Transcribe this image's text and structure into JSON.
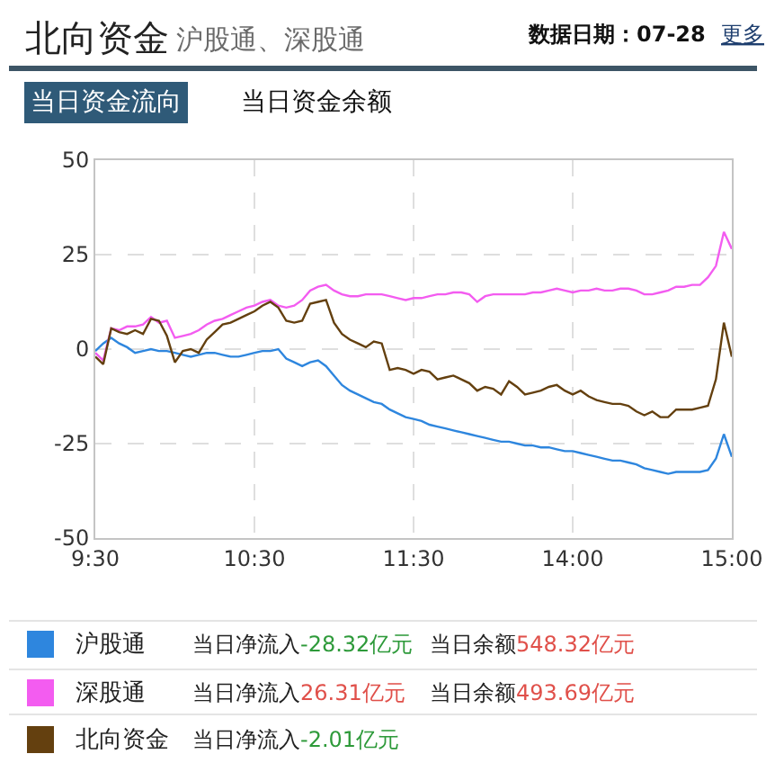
{
  "chart_data": {
    "type": "line",
    "title": "北向资金",
    "subtitle": "沪股通、深股通",
    "annotations": [
      "数据日期：07-28",
      "更多",
      "当日资金流向",
      "当日资金余额",
      "当日净流入-28.32亿元",
      "当日余额548.32亿元",
      "当日净流入26.31亿元",
      "当日余额493.69亿元",
      "当日净流入-2.01亿元"
    ],
    "categories": [
      "9:30",
      null,
      null,
      null,
      null,
      null,
      null,
      null,
      null,
      null,
      null,
      null,
      null,
      null,
      null,
      null,
      null,
      null,
      null,
      null,
      "10:30",
      null,
      null,
      null,
      null,
      null,
      null,
      null,
      null,
      null,
      null,
      null,
      null,
      null,
      null,
      null,
      null,
      null,
      null,
      null,
      "11:30",
      null,
      null,
      null,
      null,
      null,
      null,
      null,
      null,
      null,
      null,
      null,
      null,
      null,
      null,
      null,
      null,
      null,
      null,
      null,
      "14:00",
      null,
      null,
      null,
      null,
      null,
      null,
      null,
      null,
      null,
      null,
      null,
      null,
      null,
      null,
      null,
      null,
      null,
      null,
      null,
      "15:00"
    ],
    "ylim": [
      -50,
      50
    ],
    "yticks": [
      50,
      25,
      0,
      -25,
      -50
    ],
    "grid": true,
    "legend": "bottom",
    "series": [
      {
        "name": "沪股通",
        "color": "#2e86de",
        "values": [
          -0.5,
          1.5,
          3,
          1.5,
          0.5,
          -1,
          -0.5,
          0,
          -0.5,
          -0.5,
          -1,
          -1.5,
          -2,
          -1.5,
          -1,
          -1,
          -1.5,
          -2,
          -2,
          -1.5,
          -1,
          -0.5,
          -0.5,
          0,
          -2.5,
          -3.5,
          -4.5,
          -3.5,
          -3,
          -4.5,
          -7,
          -9.5,
          -11,
          -12,
          -13,
          -14,
          -14.5,
          -16,
          -17,
          -18,
          -18.5,
          -19,
          -20,
          -20.5,
          -21,
          -21.5,
          -22,
          -22.5,
          -23,
          -23.5,
          -24,
          -24.5,
          -24.5,
          -25,
          -25.5,
          -25.5,
          -26,
          -26,
          -26.5,
          -27,
          -27,
          -27.5,
          -28,
          -28.5,
          -29,
          -29.5,
          -29.5,
          -30,
          -30.5,
          -31.5,
          -32,
          -32.5,
          -33,
          -32.5,
          -32.5,
          -32.5,
          -32.5,
          -32,
          -29,
          -22.5,
          -28.5
        ]
      },
      {
        "name": "深股通",
        "color": "#f35cf0",
        "values": [
          -1,
          -3,
          5.5,
          5,
          6,
          6,
          6.5,
          8.5,
          7,
          7.5,
          3,
          3.5,
          4,
          5,
          6.5,
          7.5,
          8,
          9,
          10,
          11,
          11.5,
          12.5,
          13,
          11.5,
          11,
          11.5,
          13,
          15.5,
          16.5,
          17,
          15.5,
          14.5,
          14,
          14,
          14.5,
          14.5,
          14.5,
          14,
          13.5,
          13,
          13.5,
          13.5,
          14,
          14.5,
          14.5,
          15,
          15,
          14.5,
          12.5,
          14,
          14.5,
          14.5,
          14.5,
          14.5,
          14.5,
          15,
          15,
          15.5,
          16,
          15.5,
          15,
          15.5,
          15.5,
          16,
          15.5,
          15.5,
          16,
          16,
          15.5,
          14.5,
          14.5,
          15,
          15.5,
          16.5,
          16.5,
          17,
          17,
          19,
          22,
          31,
          26.5
        ]
      },
      {
        "name": "北向资金",
        "color": "#64400f",
        "values": [
          -2,
          -4,
          5.5,
          4.5,
          4,
          5,
          4,
          8,
          7.5,
          3.5,
          -3.5,
          -0.5,
          0,
          -1,
          2.5,
          4.5,
          6.5,
          7,
          8,
          9,
          10,
          11.5,
          12.5,
          11,
          7.5,
          7,
          7.5,
          12,
          12.5,
          13,
          7,
          4,
          2.5,
          1.5,
          0.5,
          2,
          1.5,
          -5.5,
          -5,
          -5.5,
          -6.5,
          -5.5,
          -6,
          -8,
          -7.5,
          -7,
          -8,
          -9,
          -11,
          -10,
          -10.5,
          -12,
          -8.5,
          -10,
          -12,
          -11.5,
          -11,
          -10,
          -9.5,
          -11,
          -12,
          -11,
          -12.5,
          -13.5,
          -14,
          -14.5,
          -14.5,
          -15,
          -16.5,
          -17.5,
          -16.5,
          -18,
          -18,
          -16,
          -16,
          -16,
          -15.5,
          -15,
          -8,
          7,
          -2
        ]
      }
    ]
  }
}
